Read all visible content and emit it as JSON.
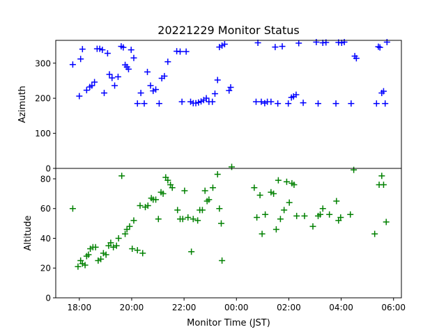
{
  "figure": {
    "title": "20221229 Monitor Status",
    "xlabel": "Monitor Time (JST)"
  },
  "chart_data": [
    {
      "type": "scatter",
      "panel": "top",
      "title": "20221229 Monitor Status",
      "xlabel": "",
      "ylabel": "Azimuth",
      "xlim_hours": [
        17.1,
        30.3
      ],
      "ylim": [
        0,
        365
      ],
      "yticks": [
        0,
        100,
        200,
        300
      ],
      "xticks_hidden": true,
      "grid": false,
      "marker": "plus",
      "color": "#0000ff",
      "points": [
        [
          17.75,
          296
        ],
        [
          18.0,
          206
        ],
        [
          18.05,
          312
        ],
        [
          18.12,
          340
        ],
        [
          18.28,
          223
        ],
        [
          18.4,
          232
        ],
        [
          18.48,
          236
        ],
        [
          18.58,
          246
        ],
        [
          18.68,
          341
        ],
        [
          18.78,
          341
        ],
        [
          18.88,
          338
        ],
        [
          18.95,
          215
        ],
        [
          19.08,
          328
        ],
        [
          19.15,
          268
        ],
        [
          19.25,
          258
        ],
        [
          19.35,
          236
        ],
        [
          19.48,
          261
        ],
        [
          19.6,
          348
        ],
        [
          19.68,
          345
        ],
        [
          19.75,
          295
        ],
        [
          19.82,
          289
        ],
        [
          19.88,
          283
        ],
        [
          19.98,
          338
        ],
        [
          20.08,
          315
        ],
        [
          20.22,
          185
        ],
        [
          20.35,
          215
        ],
        [
          20.48,
          185
        ],
        [
          20.6,
          275
        ],
        [
          20.72,
          236
        ],
        [
          20.82,
          221
        ],
        [
          20.92,
          225
        ],
        [
          21.05,
          185
        ],
        [
          21.15,
          257
        ],
        [
          21.25,
          263
        ],
        [
          21.38,
          304
        ],
        [
          21.72,
          334
        ],
        [
          21.85,
          333
        ],
        [
          21.92,
          190
        ],
        [
          22.08,
          333
        ],
        [
          22.25,
          190
        ],
        [
          22.35,
          186
        ],
        [
          22.45,
          186
        ],
        [
          22.55,
          188
        ],
        [
          22.65,
          191
        ],
        [
          22.75,
          195
        ],
        [
          22.85,
          200
        ],
        [
          22.95,
          190
        ],
        [
          23.08,
          190
        ],
        [
          23.18,
          213
        ],
        [
          23.28,
          252
        ],
        [
          23.35,
          346
        ],
        [
          23.45,
          350
        ],
        [
          23.55,
          354
        ],
        [
          23.72,
          222
        ],
        [
          23.78,
          231
        ],
        [
          24.75,
          190
        ],
        [
          24.82,
          358
        ],
        [
          24.95,
          190
        ],
        [
          25.08,
          186
        ],
        [
          25.18,
          190
        ],
        [
          25.32,
          190
        ],
        [
          25.48,
          346
        ],
        [
          25.58,
          185
        ],
        [
          25.75,
          348
        ],
        [
          25.98,
          185
        ],
        [
          26.1,
          202
        ],
        [
          26.18,
          205
        ],
        [
          26.28,
          210
        ],
        [
          26.38,
          357
        ],
        [
          26.55,
          187
        ],
        [
          27.05,
          360
        ],
        [
          27.12,
          185
        ],
        [
          27.3,
          358
        ],
        [
          27.42,
          359
        ],
        [
          27.8,
          185
        ],
        [
          27.9,
          359
        ],
        [
          28.02,
          358
        ],
        [
          28.12,
          360
        ],
        [
          28.38,
          185
        ],
        [
          28.52,
          320
        ],
        [
          28.58,
          314
        ],
        [
          29.35,
          185
        ],
        [
          29.42,
          347
        ],
        [
          29.48,
          345
        ],
        [
          29.55,
          215
        ],
        [
          29.62,
          220
        ],
        [
          29.68,
          185
        ],
        [
          29.75,
          360
        ]
      ]
    },
    {
      "type": "scatter",
      "panel": "bottom",
      "title": "",
      "xlabel": "Monitor Time (JST)",
      "ylabel": "Altitude",
      "xlim_hours": [
        17.1,
        30.3
      ],
      "ylim": [
        0,
        87
      ],
      "yticks": [
        0,
        20,
        40,
        60,
        80
      ],
      "xticks": [
        "18:00",
        "20:00",
        "22:00",
        "00:00",
        "02:00",
        "04:00",
        "06:00"
      ],
      "xtick_hours": [
        18,
        20,
        22,
        24,
        26,
        28,
        30
      ],
      "grid": false,
      "marker": "plus",
      "color": "#008000",
      "points": [
        [
          17.75,
          60
        ],
        [
          17.95,
          21
        ],
        [
          18.05,
          25
        ],
        [
          18.12,
          23
        ],
        [
          18.22,
          22
        ],
        [
          18.28,
          28
        ],
        [
          18.35,
          29
        ],
        [
          18.42,
          33
        ],
        [
          18.52,
          34
        ],
        [
          18.62,
          34
        ],
        [
          18.72,
          25
        ],
        [
          18.82,
          26
        ],
        [
          18.92,
          30
        ],
        [
          19.02,
          29
        ],
        [
          19.12,
          35
        ],
        [
          19.2,
          37
        ],
        [
          19.3,
          34
        ],
        [
          19.42,
          35
        ],
        [
          19.5,
          40
        ],
        [
          19.62,
          82
        ],
        [
          19.75,
          43
        ],
        [
          19.82,
          46
        ],
        [
          19.92,
          48
        ],
        [
          20.02,
          33
        ],
        [
          20.08,
          52
        ],
        [
          20.22,
          32
        ],
        [
          20.32,
          62
        ],
        [
          20.42,
          30
        ],
        [
          20.52,
          61
        ],
        [
          20.62,
          62
        ],
        [
          20.75,
          67
        ],
        [
          20.82,
          66
        ],
        [
          20.92,
          66
        ],
        [
          21.02,
          53
        ],
        [
          21.12,
          71
        ],
        [
          21.2,
          70
        ],
        [
          21.3,
          81
        ],
        [
          21.38,
          79
        ],
        [
          21.48,
          76
        ],
        [
          21.55,
          74
        ],
        [
          21.75,
          59
        ],
        [
          21.85,
          53
        ],
        [
          21.95,
          53
        ],
        [
          22.02,
          72
        ],
        [
          22.15,
          54
        ],
        [
          22.28,
          31
        ],
        [
          22.35,
          53
        ],
        [
          22.52,
          52
        ],
        [
          22.6,
          59
        ],
        [
          22.7,
          59
        ],
        [
          22.8,
          72
        ],
        [
          22.88,
          65
        ],
        [
          22.95,
          66
        ],
        [
          23.1,
          74
        ],
        [
          23.28,
          83
        ],
        [
          23.35,
          60
        ],
        [
          23.42,
          50
        ],
        [
          23.45,
          25
        ],
        [
          23.82,
          88
        ],
        [
          24.68,
          74
        ],
        [
          24.78,
          54
        ],
        [
          24.9,
          69
        ],
        [
          24.98,
          43
        ],
        [
          25.1,
          56
        ],
        [
          25.32,
          71
        ],
        [
          25.42,
          70
        ],
        [
          25.52,
          46
        ],
        [
          25.6,
          79
        ],
        [
          25.68,
          53
        ],
        [
          25.82,
          59
        ],
        [
          25.92,
          78
        ],
        [
          26.02,
          64
        ],
        [
          26.12,
          77
        ],
        [
          26.2,
          76
        ],
        [
          26.3,
          55
        ],
        [
          26.6,
          55
        ],
        [
          26.92,
          48
        ],
        [
          27.12,
          55
        ],
        [
          27.2,
          56
        ],
        [
          27.3,
          60
        ],
        [
          27.55,
          56
        ],
        [
          27.82,
          65
        ],
        [
          27.9,
          52
        ],
        [
          27.98,
          54
        ],
        [
          28.35,
          56
        ],
        [
          28.48,
          86
        ],
        [
          29.28,
          43
        ],
        [
          29.45,
          76
        ],
        [
          29.55,
          82
        ],
        [
          29.62,
          76
        ],
        [
          29.72,
          51
        ]
      ]
    }
  ]
}
